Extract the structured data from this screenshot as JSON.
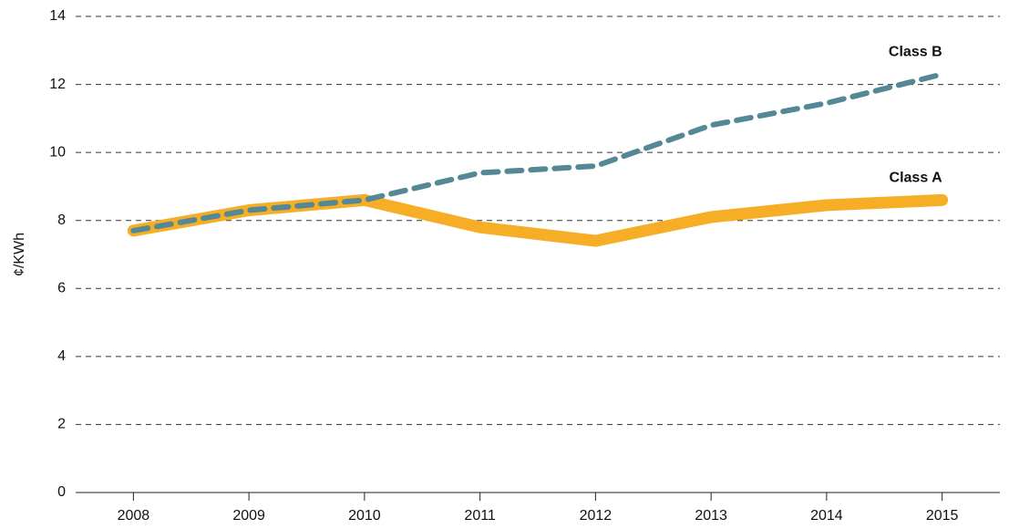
{
  "chart_data": {
    "type": "line",
    "y_label": "¢/KWh",
    "categories": [
      "2008",
      "2009",
      "2010",
      "2011",
      "2012",
      "2013",
      "2014",
      "2015"
    ],
    "series": [
      {
        "name": "Class A",
        "color": "#f5ae26",
        "values": [
          7.7,
          8.3,
          8.6,
          7.8,
          7.4,
          8.1,
          8.45,
          8.6
        ]
      },
      {
        "name": "Class B",
        "color": "#548895",
        "dashed": true,
        "values": [
          7.7,
          8.3,
          8.6,
          9.4,
          9.6,
          10.8,
          11.45,
          12.3
        ]
      }
    ],
    "ylim": [
      0,
      14
    ],
    "yticks": [
      0,
      2,
      4,
      6,
      8,
      10,
      12,
      14
    ],
    "grid": true
  }
}
